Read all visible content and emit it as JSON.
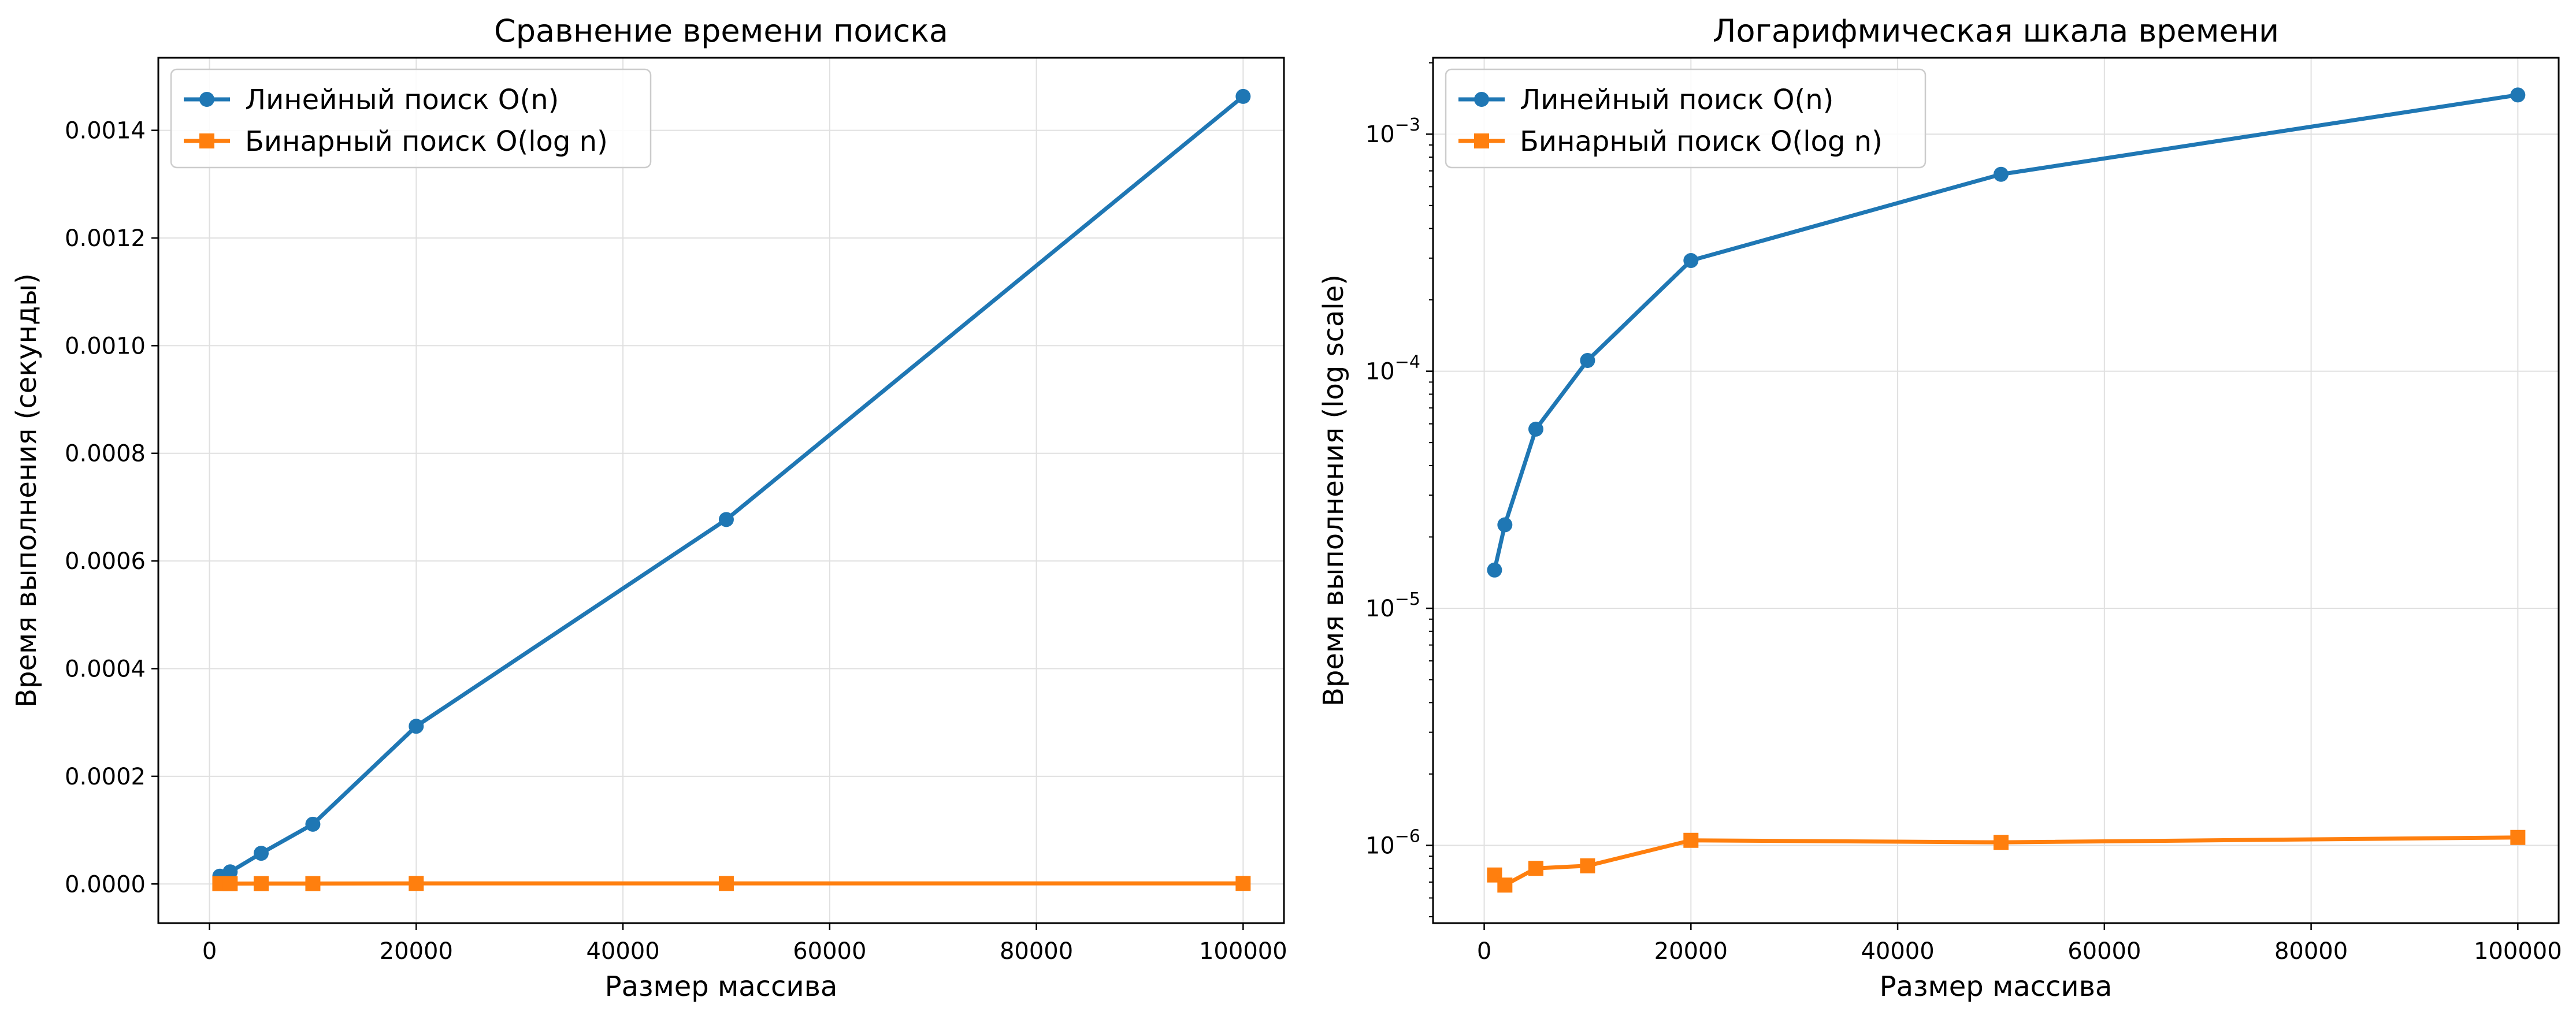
{
  "chart_data": [
    {
      "type": "line",
      "title": "Сравнение времени поиска",
      "xlabel": "Размер массива",
      "ylabel": "Время выполнения (секунды)",
      "yscale": "linear",
      "x": [
        1000,
        2000,
        5000,
        10000,
        20000,
        50000,
        100000
      ],
      "xlim": [
        -4950,
        103950
      ],
      "ylim": [
        -7.27e-05,
        0.0015348
      ],
      "xticks": [
        0,
        20000,
        40000,
        60000,
        80000,
        100000
      ],
      "xtick_labels": [
        "0",
        "20000",
        "40000",
        "60000",
        "80000",
        "100000"
      ],
      "yticks": [
        0,
        0.0002,
        0.0004,
        0.0006,
        0.0008,
        0.001,
        0.0012,
        0.0014
      ],
      "ytick_labels": [
        "0.0000",
        "0.0002",
        "0.0004",
        "0.0006",
        "0.0008",
        "0.0010",
        "0.0012",
        "0.0014"
      ],
      "grid": true,
      "legend_position": "top-left",
      "series": [
        {
          "name": "Линейный поиск O(n)",
          "color": "#1f77b4",
          "marker": "circle",
          "values": [
            1.45e-05,
            2.25e-05,
            5.7e-05,
            0.000111,
            0.000293,
            0.000677,
            0.001463
          ]
        },
        {
          "name": "Бинарный поиск O(log n)",
          "color": "#ff7f0e",
          "marker": "square",
          "values": [
            7.5e-07,
            6.8e-07,
            8e-07,
            8.2e-07,
            1.05e-06,
            1.03e-06,
            1.08e-06
          ]
        }
      ]
    },
    {
      "type": "line",
      "title": "Логарифмическая шкала времени",
      "xlabel": "Размер массива",
      "ylabel": "Время выполнения (log scale)",
      "yscale": "log",
      "x": [
        1000,
        2000,
        5000,
        10000,
        20000,
        50000,
        100000
      ],
      "xlim": [
        -4950,
        103950
      ],
      "ylim": [
        4.7e-07,
        0.0021
      ],
      "xticks": [
        0,
        20000,
        40000,
        60000,
        80000,
        100000
      ],
      "xtick_labels": [
        "0",
        "20000",
        "40000",
        "60000",
        "80000",
        "100000"
      ],
      "yticks": [
        1e-06,
        1e-05,
        0.0001,
        0.001
      ],
      "ytick_labels": [
        [
          "10",
          "−6"
        ],
        [
          "10",
          "−5"
        ],
        [
          "10",
          "−4"
        ],
        [
          "10",
          "−3"
        ]
      ],
      "grid": true,
      "legend_position": "top-left",
      "series": [
        {
          "name": "Линейный поиск O(n)",
          "color": "#1f77b4",
          "marker": "circle",
          "values": [
            1.45e-05,
            2.25e-05,
            5.7e-05,
            0.000111,
            0.000293,
            0.000677,
            0.001463
          ]
        },
        {
          "name": "Бинарный поиск O(log n)",
          "color": "#ff7f0e",
          "marker": "square",
          "values": [
            7.5e-07,
            6.8e-07,
            8e-07,
            8.2e-07,
            1.05e-06,
            1.03e-06,
            1.08e-06
          ]
        }
      ]
    }
  ]
}
